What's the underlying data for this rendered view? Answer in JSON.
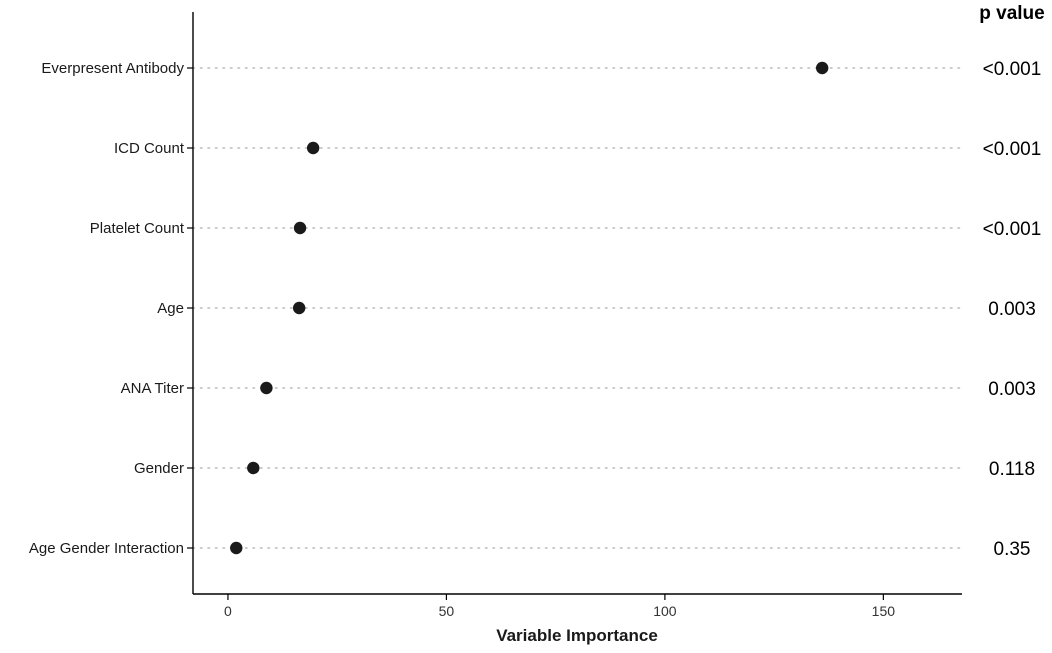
{
  "chart_data": {
    "type": "scatter",
    "orientation": "horizontal-dot-plot",
    "xlabel": "Variable Importance",
    "ylabel": "",
    "xlim": [
      -8,
      168
    ],
    "xticks": [
      0,
      50,
      100,
      150
    ],
    "grid": "dotted horizontal guides per category",
    "categories": [
      "Everpresent Antibody",
      "ICD Count",
      "Platelet Count",
      "Age",
      "ANA Titer",
      "Gender",
      "Age Gender Interaction"
    ],
    "values": [
      136,
      19.5,
      16.5,
      16.3,
      8.8,
      5.8,
      1.9
    ],
    "p_value_header": "p value",
    "p_values": [
      "<0.001",
      "<0.001",
      "<0.001",
      "0.003",
      "0.003",
      "0.118",
      "0.35"
    ],
    "colors": {
      "point": "#1a1a1a",
      "guide": "#bbbbbb",
      "axis": "#000000"
    }
  }
}
